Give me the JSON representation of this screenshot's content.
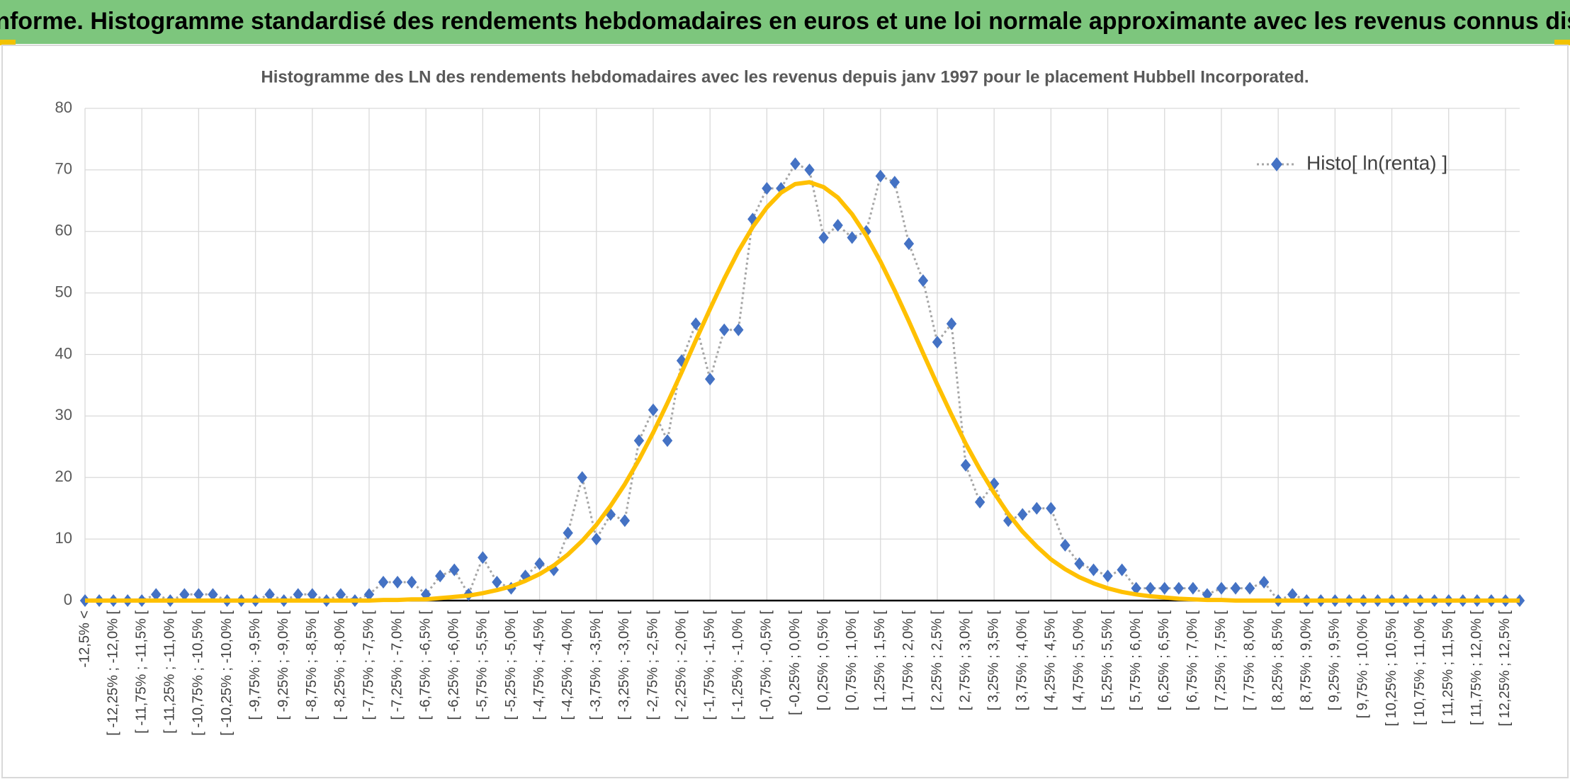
{
  "page_title": "ADAM Informe. Histogramme standardisé des rendements hebdomadaires en euros et une loi normale approximante avec les revenus connus distribués",
  "chart_data": {
    "type": "line",
    "title": "Histogramme des LN des rendements hebdomadaires avec les revenus depuis janv 1997 pour le placement Hubbell Incorporated.",
    "categories": [
      "-12,5% <",
      null,
      "[ -12,25% ; -12,0% [",
      null,
      "[ -11,75% ; -11,5% [",
      null,
      "[ -11,25% ; -11,0% [",
      null,
      "[ -10,75% ; -10,5% [",
      null,
      "[ -10,25% ; -10,0% [",
      null,
      "[ -9,75% ; -9,5% [",
      null,
      "[ -9,25% ; -9,0% [",
      null,
      "[ -8,75% ; -8,5% [",
      null,
      "[ -8,25% ; -8,0% [",
      null,
      "[ -7,75% ; -7,5% [",
      null,
      "[ -7,25% ; -7,0% [",
      null,
      "[ -6,75% ; -6,5% [",
      null,
      "[ -6,25% ; -6,0% [",
      null,
      "[ -5,75% ; -5,5% [",
      null,
      "[ -5,25% ; -5,0% [",
      null,
      "[ -4,75% ; -4,5% [",
      null,
      "[ -4,25% ; -4,0% [",
      null,
      "[ -3,75% ; -3,5% [",
      null,
      "[ -3,25% ; -3,0% [",
      null,
      "[ -2,75% ; -2,5% [",
      null,
      "[ -2,25% ; -2,0% [",
      null,
      "[ -1,75% ; -1,5% [",
      null,
      "[ -1,25% ; -1,0% [",
      null,
      "[ -0,75% ; -0,5% [",
      null,
      "[ -0,25% ; 0,0% [",
      null,
      "[ 0,25% ; 0,5% [",
      null,
      "[ 0,75% ; 1,0% [",
      null,
      "[ 1,25% ; 1,5% [",
      null,
      "[ 1,75% ; 2,0% [",
      null,
      "[ 2,25% ; 2,5% [",
      null,
      "[ 2,75% ; 3,0% [",
      null,
      "[ 3,25% ; 3,5% [",
      null,
      "[ 3,75% ; 4,0% [",
      null,
      "[ 4,25% ; 4,5% [",
      null,
      "[ 4,75% ; 5,0% [",
      null,
      "[ 5,25% ; 5,5% [",
      null,
      "[ 5,75% ; 6,0% [",
      null,
      "[ 6,25% ; 6,5% [",
      null,
      "[ 6,75% ; 7,0% [",
      null,
      "[ 7,25% ; 7,5% [",
      null,
      "[ 7,75% ; 8,0% [",
      null,
      "[ 8,25% ; 8,5% [",
      null,
      "[ 8,75% ; 9,0% [",
      null,
      "[ 9,25% ; 9,5% [",
      null,
      "[ 9,75% ; 10,0% [",
      null,
      "[ 10,25% ; 10,5% [",
      null,
      "[ 10,75% ; 11,0% [",
      null,
      "[ 11,25% ; 11,5% [",
      null,
      "[ 11,75% ; 12,0% [",
      null,
      "[ 12,25% ; 12,5% [",
      null
    ],
    "series": [
      {
        "name": "Histo[ ln(renta) ]",
        "color": "#4472c4",
        "values": [
          0,
          0,
          0,
          0,
          0,
          1,
          0,
          1,
          1,
          1,
          0,
          0,
          0,
          1,
          0,
          1,
          1,
          0,
          1,
          0,
          1,
          3,
          3,
          3,
          1,
          4,
          5,
          1,
          7,
          3,
          2,
          4,
          6,
          5,
          11,
          20,
          10,
          14,
          13,
          26,
          31,
          26,
          39,
          45,
          36,
          44,
          44,
          62,
          67,
          67,
          71,
          70,
          59,
          61,
          59,
          60,
          69,
          68,
          58,
          52,
          42,
          45,
          22,
          16,
          19,
          13,
          14,
          15,
          15,
          9,
          6,
          5,
          4,
          5,
          2,
          2,
          2,
          2,
          2,
          1,
          2,
          2,
          2,
          3,
          0,
          1,
          0,
          0,
          0,
          0,
          0,
          0,
          0,
          0,
          0,
          0,
          0,
          0,
          0,
          0,
          0,
          0
        ]
      },
      {
        "color": "#ffc000",
        "values": [
          0,
          0,
          0,
          0,
          0,
          0,
          0,
          0,
          0,
          0,
          0,
          0,
          0,
          0,
          0,
          0,
          0,
          0,
          0,
          0,
          0,
          0.1,
          0.1,
          0.2,
          0.2,
          0.4,
          0.6,
          0.8,
          1.2,
          1.7,
          2.3,
          3.2,
          4.3,
          5.7,
          7.5,
          9.7,
          12.3,
          15.4,
          18.9,
          22.9,
          27.3,
          32.1,
          37.1,
          42.3,
          47.4,
          52.3,
          56.8,
          60.7,
          63.9,
          66.3,
          67.7,
          68.0,
          67.2,
          65.5,
          62.8,
          59.3,
          55.1,
          50.4,
          45.4,
          40.2,
          35.1,
          30.2,
          25.5,
          21.3,
          17.5,
          14.1,
          11.2,
          8.8,
          6.7,
          5.1,
          3.8,
          2.8,
          2.0,
          1.4,
          1.0,
          0.7,
          0.5,
          0.3,
          0.2,
          0.1,
          0.1,
          0,
          0,
          0,
          0,
          0,
          0,
          0,
          0,
          0,
          0,
          0,
          0,
          0,
          0,
          0,
          0,
          0,
          0,
          0,
          0,
          0
        ]
      }
    ],
    "ylim": [
      0,
      80
    ],
    "yticks": [
      0,
      10,
      20,
      30,
      40,
      50,
      60,
      70,
      80
    ],
    "grid": true,
    "legend": "top-right"
  }
}
